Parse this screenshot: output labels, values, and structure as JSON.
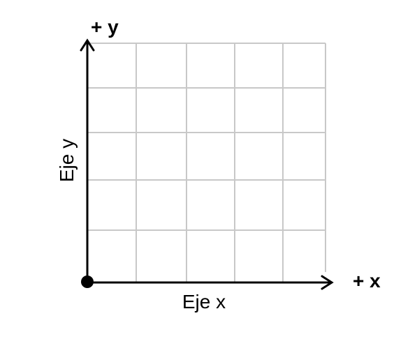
{
  "diagram": {
    "x_axis": {
      "end_label": "+ x",
      "name": "Eje x"
    },
    "y_axis": {
      "end_label": "+ y",
      "name": "Eje y"
    }
  },
  "colors": {
    "axis": "#000000",
    "grid": "#c8c8c8",
    "origin": "#000000"
  }
}
